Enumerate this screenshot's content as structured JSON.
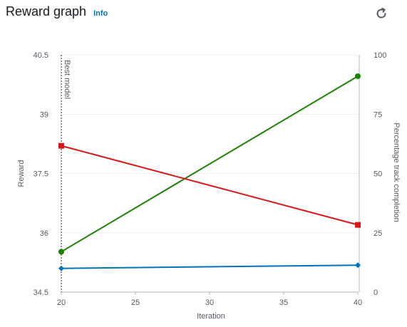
{
  "header": {
    "title": "Reward graph",
    "info_label": "Info",
    "refresh_icon": "refresh-icon"
  },
  "chart_data": {
    "type": "line",
    "xlabel": "Iteration",
    "ylabel_left": "Reward",
    "ylabel_right": "Percentage track completion",
    "xlim": [
      20,
      40
    ],
    "ylim_left": [
      34.5,
      40.5
    ],
    "ylim_right": [
      0,
      100
    ],
    "x_ticks": [
      20,
      25,
      30,
      35,
      40
    ],
    "y_left_ticks": [
      "34.5",
      "36",
      "37.5",
      "39",
      "40.5"
    ],
    "y_right_ticks": [
      "0",
      "25",
      "50",
      "75",
      "100"
    ],
    "grid": true,
    "annotation": {
      "label": "Best model",
      "x": 20
    },
    "series": [
      {
        "axis": "right",
        "marker": "circle",
        "color": "#1d8102",
        "x": [
          20,
          40
        ],
        "values": [
          17,
          91
        ]
      },
      {
        "axis": "left",
        "marker": "square",
        "color": "#d91515",
        "x": [
          20,
          40
        ],
        "values": [
          38.2,
          36.2
        ]
      },
      {
        "axis": "left",
        "marker": "diamond",
        "color": "#0073bb",
        "x": [
          20,
          40
        ],
        "values": [
          35.1,
          35.18
        ]
      }
    ]
  }
}
